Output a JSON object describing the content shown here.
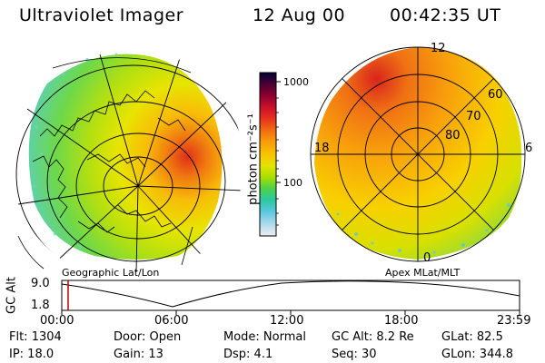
{
  "header": {
    "instrument": "Ultraviolet Imager",
    "date": "12 Aug 00",
    "time": "00:42:35 UT"
  },
  "left_panel": {
    "caption": "Geographic Lat/Lon"
  },
  "right_panel": {
    "caption": "Apex MLat/MLT",
    "mlt_labels": [
      "12",
      "18",
      "6",
      "0"
    ],
    "mlat_labels": [
      "60",
      "70",
      "80"
    ]
  },
  "colorbar": {
    "unit_label": "photon cm⁻²s⁻¹",
    "ticks": [
      "1000",
      "100"
    ],
    "colors": [
      "#000033",
      "#4b0033",
      "#8b0030",
      "#c8102a",
      "#e8301e",
      "#f06a10",
      "#f89a0c",
      "#f8c400",
      "#e4e400",
      "#a8e000",
      "#4cd24c",
      "#2cc8a0",
      "#58c8e0",
      "#a8d8ec",
      "#d8e8ee",
      "#eeeeee"
    ]
  },
  "altitude_plot": {
    "ylabel": "GC Alt",
    "y_ticks": [
      "9.0",
      "1.8"
    ],
    "x_ticks": [
      "00:00",
      "06:00",
      "12:00",
      "18:00",
      "23:59"
    ],
    "marker_color": "#c00000"
  },
  "status": {
    "flt": "Flt:  1304",
    "ip": "IP:  18.0",
    "door": "Door:  Open",
    "gain": "Gain:  13",
    "mode": "Mode:  Normal",
    "dsp": "Dsp:      4.1",
    "gcalt": "GC Alt:  8.2 Re",
    "seq": "Seq:  30",
    "glat": "GLat:   82.5",
    "glon": "GLon:  344.8"
  }
}
